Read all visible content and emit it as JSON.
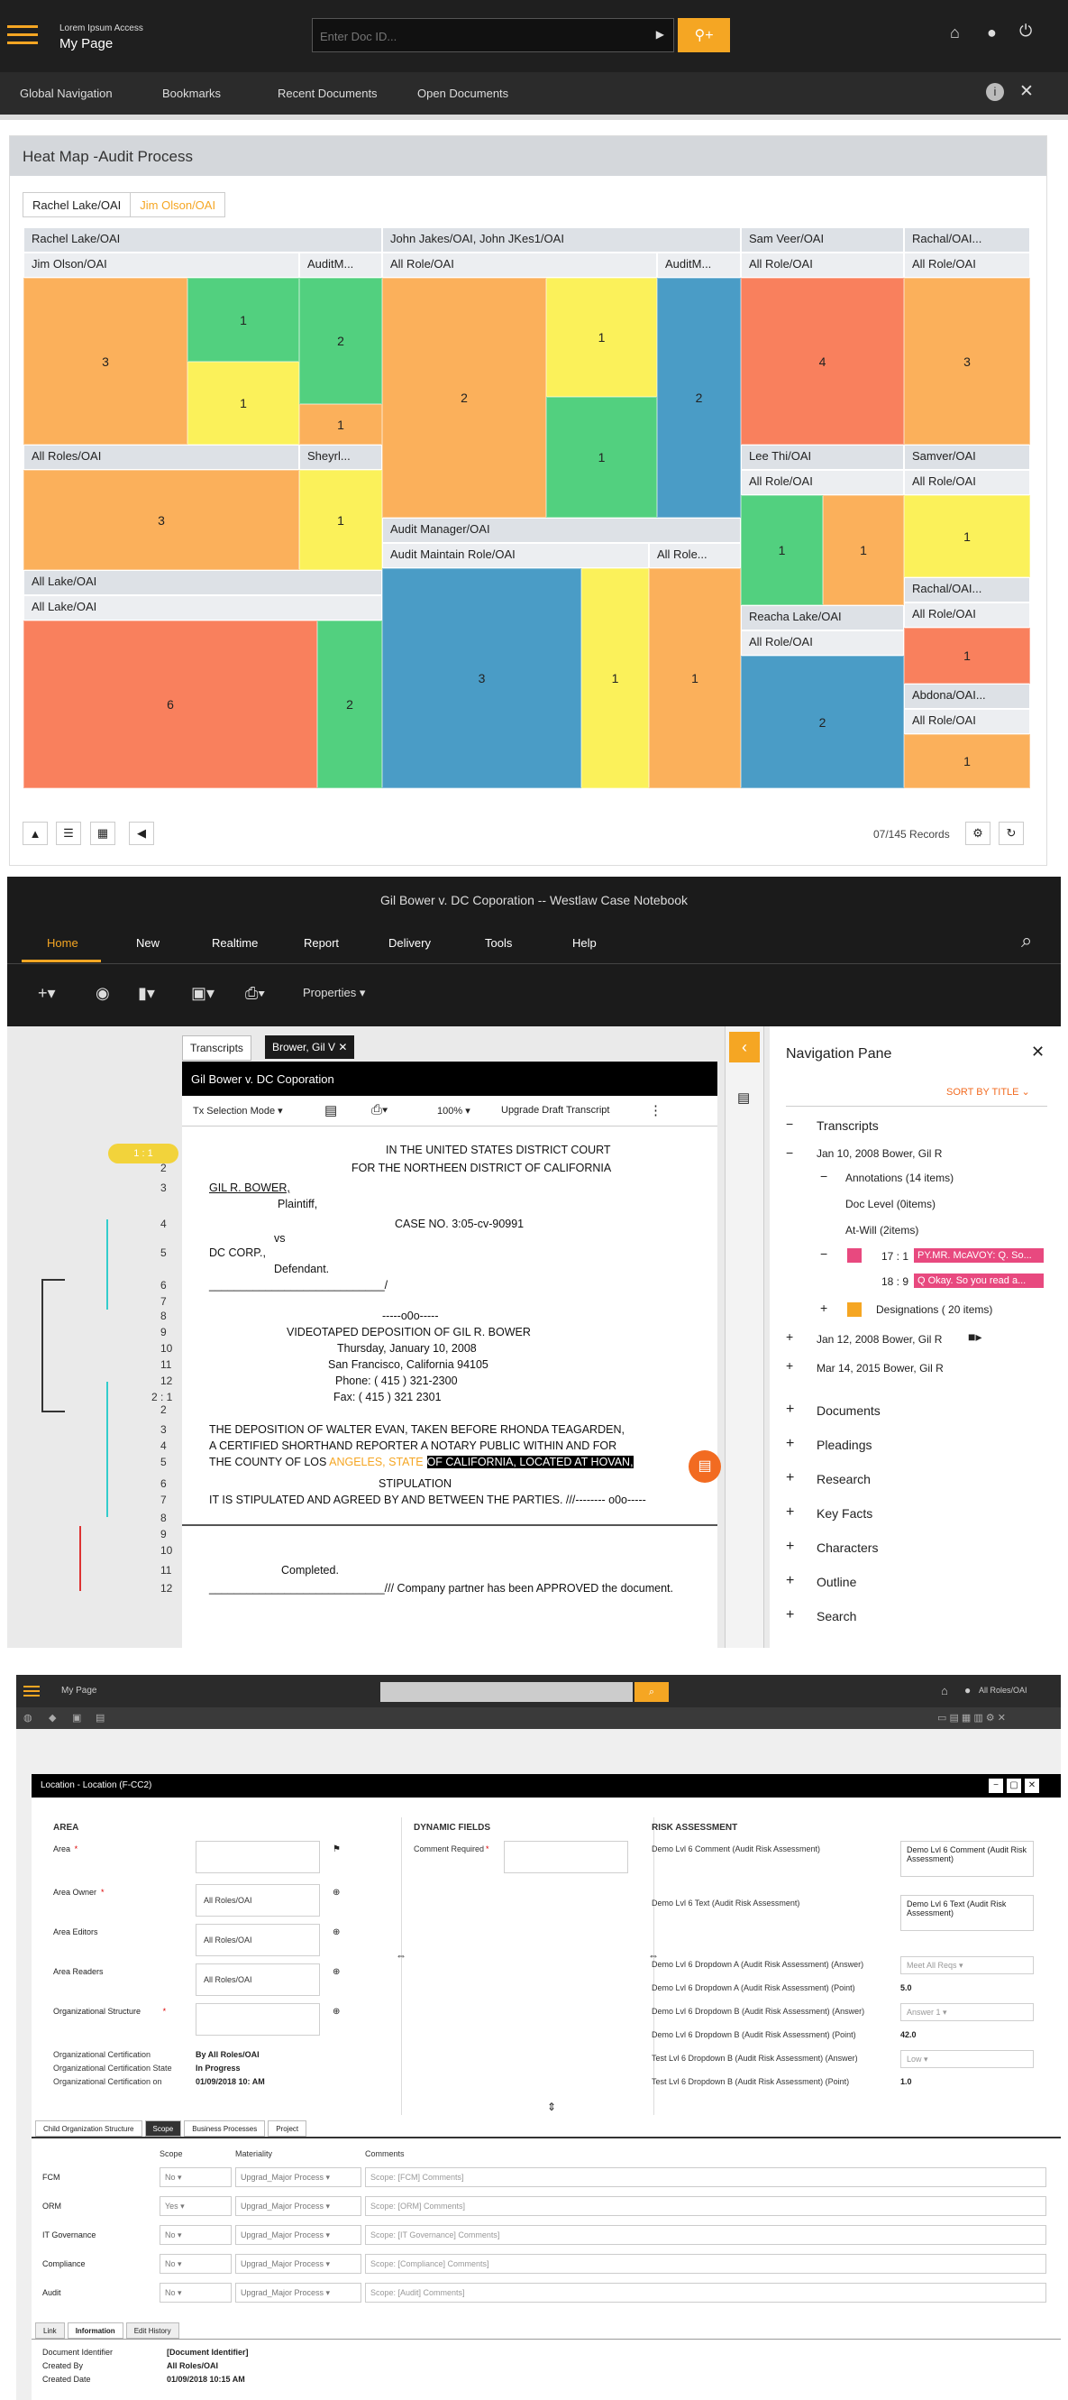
{
  "s1": {
    "app_line1": "Lorem Ipsum Access",
    "app_line2": "My Page",
    "search_placeholder": "Enter Doc ID...",
    "nav": [
      "Global Navigation",
      "Bookmarks",
      "Recent Documents",
      "Open Documents"
    ],
    "heatmap_title": "Heat Map -Audit Process",
    "crumbs": [
      "Rachel Lake/OAI",
      "Jim Olson/OAI"
    ],
    "labels": {
      "l1": "Rachel Lake/OAI",
      "l2": "John Jakes/OAI, John JKes1/OAI",
      "l3": "Sam Veer/OAI",
      "l4": "Rachal/OAI...",
      "l5": "Jim Olson/OAI",
      "l6": "AuditM...",
      "l7": "All Role/OAI",
      "l8": "AuditM...",
      "l9": "All Role/OAI",
      "l10": "All Role/OAI",
      "l11": "All Roles/OAI",
      "l12": "Sheyrl...",
      "l13": "Lee Thi/OAI",
      "l14": "Samver/OAI",
      "l15": "All Role/OAI",
      "l16": "All Role/OAI",
      "l17": "Audit Manager/OAI",
      "l18": "Audit Maintain Role/OAI",
      "l19": "All Role...",
      "l20": "All Lake/OAI",
      "l21": "All Lake/OAI",
      "l22": "Rachal/OAI...",
      "l23": "All Role/OAI",
      "l24": "Reacha Lake/OAI",
      "l25": "All Role/OAI",
      "l26": "Abdona/OAI...",
      "l27": "All Role/OAI"
    },
    "values": {
      "c1": "3",
      "c2": "1",
      "c3": "2",
      "c4": "1",
      "c5": "1",
      "c6": "2",
      "c7": "1",
      "c8": "1",
      "c9": "2",
      "c10": "4",
      "c11": "3",
      "c12": "3",
      "c13": "1",
      "c14": "1",
      "c15": "1",
      "c16": "1",
      "c17": "3",
      "c18": "1",
      "c19": "1",
      "c20": "6",
      "c21": "2",
      "c22": "1",
      "c23": "2",
      "c24": "1"
    },
    "records": "07/145 Records"
  },
  "s2": {
    "window_title": "Gil Bower v. DC Coporation -- Westlaw Case Notebook",
    "tabs": [
      "Home",
      "New",
      "Realtime",
      "Report",
      "Delivery",
      "Tools",
      "Help"
    ],
    "properties": "Properties",
    "doc_tabs": [
      "Transcripts",
      "Brower, Gil V"
    ],
    "doc_title": "Gil Bower v. DC Coporation",
    "toolbar": {
      "mode": "Tx Selection Mode",
      "zoom": "100%",
      "upgrade": "Upgrade Draft Transcript"
    },
    "page_marker": "1 : 1",
    "page_marker2": "2 : 1",
    "lines": [
      {
        "n": "",
        "t": "IN THE UNITED STATES DISTRICT COURT"
      },
      {
        "n": "2",
        "t": "FOR THE NORTHEEN DISTRICT OF CALIFORNIA"
      },
      {
        "n": "3",
        "t": "GIL R. BOWER,"
      },
      {
        "n": "",
        "t": "Plaintiff,"
      },
      {
        "n": "4",
        "t": "CASE NO.    3:05-cv-90991"
      },
      {
        "n": "",
        "t": "vs"
      },
      {
        "n": "5",
        "t": "DC CORP.,"
      },
      {
        "n": "",
        "t": "Defendant."
      },
      {
        "n": "6",
        "t": "____________________________/"
      },
      {
        "n": "7",
        "t": ""
      },
      {
        "n": "8",
        "t": "-----o0o-----"
      },
      {
        "n": "9",
        "t": "VIDEOTAPED DEPOSITION OF GIL R. BOWER"
      },
      {
        "n": "10",
        "t": "Thursday, January 10, 2008"
      },
      {
        "n": "11",
        "t": "San Francisco, California 94105"
      },
      {
        "n": "12",
        "t": "Phone: ( 415 ) 321-2300"
      },
      {
        "n": "2 : 1",
        "t": "Fax: ( 415 ) 321 2301"
      },
      {
        "n": "2",
        "t": ""
      },
      {
        "n": "3",
        "t": "THE DEPOSITION OF WALTER EVAN, TAKEN BEFORE RHONDA TEAGARDEN,"
      },
      {
        "n": "4",
        "t": "A CERTIFIED SHORTHAND REPORTER  A NOTARY PUBLIC WITHIN AND FOR"
      },
      {
        "n": "5",
        "t": "THE COUNTY OF LOS "
      },
      {
        "n": "6",
        "t": "STIPULATION"
      },
      {
        "n": "7",
        "t": "IT IS STIPULATED AND AGREED BY AND BETWEEN THE PARTIES. ///-------- o0o-----"
      },
      {
        "n": "8",
        "t": ""
      },
      {
        "n": "9",
        "t": ""
      },
      {
        "n": "10",
        "t": ""
      },
      {
        "n": "11",
        "t": "Completed."
      },
      {
        "n": "12",
        "t": "____________________________/// Company partner has been APPROVED the document."
      }
    ],
    "highlight_yellow": "ANGELES, STATE",
    "highlight_black": "OF CALIFORNIA, LOCATED AT HOVAN,",
    "nav_pane": {
      "title": "Navigation Pane",
      "sort": "SORT BY TITLE",
      "transcripts": "Transcripts",
      "t1": "Jan 10, 2008 Bower, Gil R",
      "annotations": "Annotations (14 items)",
      "doclevel": "Doc Level (0items)",
      "atwill": "At-Will (2items)",
      "a1n": "17 : 1",
      "a1t": "PY.MR. McAVOY: Q. So...",
      "a2n": "18 : 9",
      "a2t": "Q Okay. So you read a...",
      "designations": "Designations ( 20 items)",
      "t2": "Jan 12, 2008 Bower, Gil R",
      "t3": "Mar 14, 2015 Bower, Gil R",
      "sections": [
        "Documents",
        "Pleadings",
        "Research",
        "Key Facts",
        "Characters",
        "Outline",
        "Search"
      ]
    }
  },
  "s3": {
    "app": "My Page",
    "user": "All Roles/OAI",
    "window_title": "Location - Location (F-CC2)",
    "area": {
      "heading": "AREA",
      "fields": [
        {
          "label": "Area",
          "req": "*",
          "value": ""
        },
        {
          "label": "Area Owner",
          "req": "*",
          "value": "All Roles/OAI"
        },
        {
          "label": "Area Editors",
          "req": "",
          "value": "All Roles/OAI"
        },
        {
          "label": "Area Readers",
          "req": "",
          "value": "All Roles/OAI"
        },
        {
          "label": "Organizational Structure",
          "req": "*",
          "value": ""
        }
      ],
      "cert": [
        [
          "Organizational Certification",
          "By All Roles/OAI"
        ],
        [
          "Organizational Certification State",
          "In Progress"
        ],
        [
          "Organizational Certification on",
          "01/09/2018 10: AM"
        ]
      ]
    },
    "dyn": {
      "heading": "DYNAMIC FIELDS",
      "label": "Comment Required",
      "req": "*"
    },
    "risk": {
      "heading": "RISK ASSESSMENT",
      "rows": [
        [
          "Demo Lvl 6 Comment (Audit Risk Assessment)",
          "Demo Lvl 6 Comment (Audit Risk Assessment)"
        ],
        [
          "Demo Lvl 6 Text (Audit Risk Assessment)",
          "Demo Lvl 6 Text (Audit Risk Assessment)"
        ],
        [
          "Demo Lvl 6 Dropdown A (Audit Risk Assessment) (Answer)",
          "Meet All Reqs"
        ],
        [
          "Demo Lvl 6 Dropdown A (Audit Risk Assessment) (Point)",
          "5.0"
        ],
        [
          "Demo Lvl 6 Dropdown B (Audit Risk Assessment) (Answer)",
          "Answer 1"
        ],
        [
          "Demo Lvl 6 Dropdown B (Audit Risk Assessment) (Point)",
          "42.0"
        ],
        [
          "Test Lvl 6 Dropdown B (Audit Risk Assessment) (Answer)",
          "Low"
        ],
        [
          "Test Lvl 6 Dropdown B (Audit Risk Assessment) (Point)",
          "1.0"
        ]
      ]
    },
    "subtabs": [
      "Child Organization Structure",
      "Scope",
      "Business Processes",
      "Project"
    ],
    "cols": [
      "Scope",
      "Materiality",
      "Comments"
    ],
    "rows": [
      {
        "name": "FCM",
        "scope": "No",
        "mat": "Upgrad_Major Process",
        "c": "Scope: [FCM] Comments]"
      },
      {
        "name": "ORM",
        "scope": "Yes",
        "mat": "Upgrad_Major Process",
        "c": "Scope: [ORM] Comments]"
      },
      {
        "name": "IT Governance",
        "scope": "No",
        "mat": "Upgrad_Major Process",
        "c": "Scope: [IT Governance] Comments]"
      },
      {
        "name": "Compliance",
        "scope": "No",
        "mat": "Upgrad_Major Process",
        "c": "Scope: [Compliance] Comments]"
      },
      {
        "name": "Audit",
        "scope": "No",
        "mat": "Upgrad_Major Process",
        "c": "Scope: [Audit] Comments]"
      }
    ],
    "bottom_tabs": [
      "Link",
      "Information",
      "Edit History"
    ],
    "info": [
      [
        "Document Identifier",
        "[Document Identifier]"
      ],
      [
        "Created By",
        "All Roles/OAI"
      ],
      [
        "Created Date",
        "01/09/2018 10:15 AM"
      ]
    ]
  }
}
